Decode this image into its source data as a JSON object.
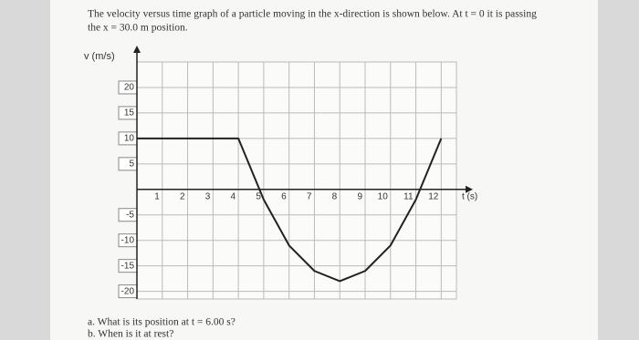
{
  "problem": {
    "statement": [
      "The velocity versus time graph of a particle moving in the x-direction is shown below. At t = 0 it is passing",
      "the x = 30.0 m position."
    ],
    "questions": [
      "a. What is its position at t = 6.00 s?",
      "b. When is it at rest?"
    ]
  },
  "chart_data": {
    "type": "line",
    "y_label": "v (m/s)",
    "x_label": "t (s)",
    "x": [
      0,
      1,
      2,
      3,
      4,
      5,
      6,
      7,
      8,
      9,
      10,
      11,
      12
    ],
    "values": [
      10,
      10,
      10,
      10,
      10,
      -2,
      -11,
      -16,
      -18,
      -16,
      -11,
      -2,
      10
    ],
    "color": "#222222",
    "xlim": [
      0,
      12.6
    ],
    "ylim": [
      -21.5,
      25
    ],
    "xticks": [
      1,
      2,
      3,
      4,
      5,
      6,
      7,
      8,
      9,
      10,
      11,
      12
    ],
    "yticks": [
      20,
      15,
      10,
      5,
      -5,
      -10,
      -15,
      -20
    ],
    "grid": true
  }
}
